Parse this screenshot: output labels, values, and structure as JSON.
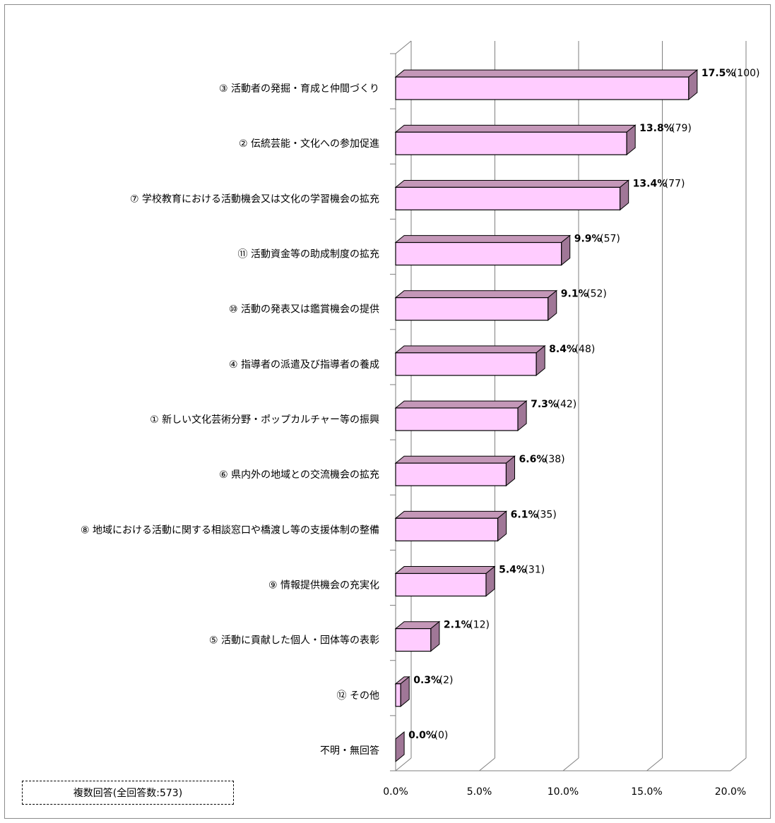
{
  "chart_data": {
    "type": "bar",
    "orientation": "horizontal",
    "three_d": true,
    "categories": [
      "③ 活動者の発掘・育成と仲間づくり",
      "② 伝統芸能・文化への参加促進",
      "⑦ 学校教育における活動機会又は文化の学習機会の拡充",
      "⑪ 活動資金等の助成制度の拡充",
      "⑩ 活動の発表又は鑑賞機会の提供",
      "④ 指導者の派遣及び指導者の養成",
      "① 新しい文化芸術分野・ポップカルチャー等の振興",
      "⑥ 県内外の地域との交流機会の拡充",
      "⑧ 地域における活動に関する相談窓口や橋渡し等の支援体制の整備",
      "⑨ 情報提供機会の充実化",
      "⑤ 活動に貢献した個人・団体等の表彰",
      "⑫ その他",
      "不明・無回答"
    ],
    "values": [
      17.5,
      13.8,
      13.4,
      9.9,
      9.1,
      8.4,
      7.3,
      6.6,
      6.1,
      5.4,
      2.1,
      0.3,
      0.0
    ],
    "value_labels": [
      "17.5%",
      "13.8%",
      "13.4%",
      "9.9%",
      "9.1%",
      "8.4%",
      "7.3%",
      "6.6%",
      "6.1%",
      "5.4%",
      "2.1%",
      "0.3%",
      "0.0%"
    ],
    "count_labels": [
      "(100)",
      "(79)",
      "(77)",
      "(57)",
      "(52)",
      "(48)",
      "(42)",
      "(38)",
      "(35)",
      "(31)",
      "(12)",
      "(2)",
      "(0)"
    ],
    "xlim": [
      0,
      20
    ],
    "xticks": [
      "0.0%",
      "5.0%",
      "10.0%",
      "15.0%",
      "20.0%"
    ],
    "grid": true,
    "colors": {
      "bar_front": "#ffccff",
      "bar_top": "#c497b8",
      "bar_side": "#a07797",
      "edge": "#000000",
      "grid": "#7f7f7f"
    }
  },
  "note": "複数回答(全回答数:573)"
}
